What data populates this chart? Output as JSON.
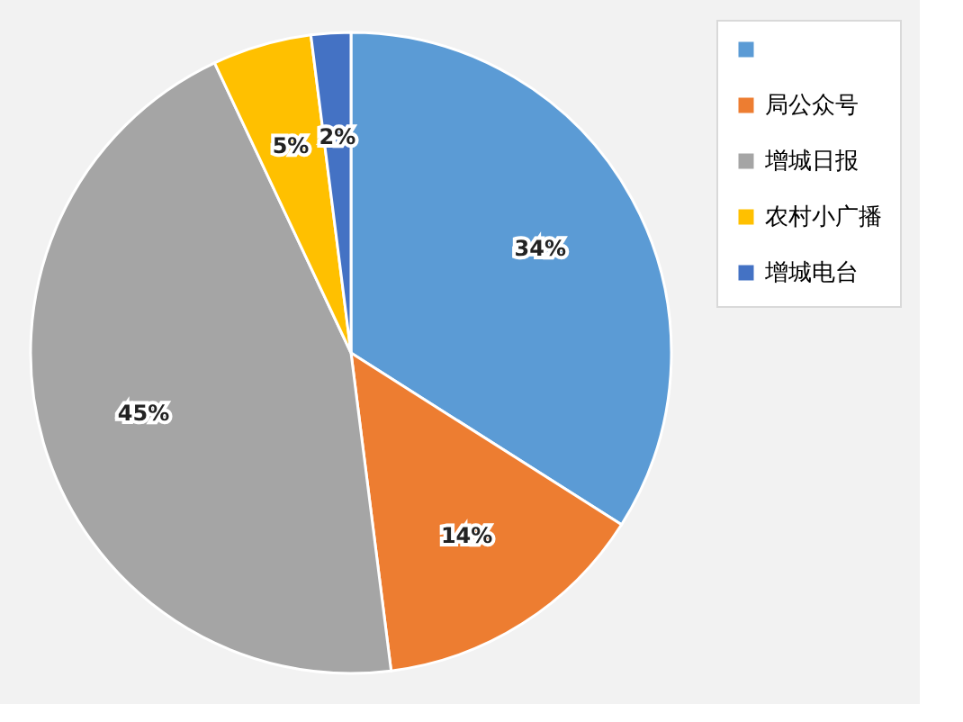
{
  "chart_data": {
    "type": "pie",
    "categories": [
      null,
      "局公众号",
      "增城日报",
      "农村小广播",
      "增城电台"
    ],
    "values": [
      34,
      14,
      45,
      5,
      2
    ],
    "colors": [
      "#5b9bd5",
      "#ed7d31",
      "#a5a5a5",
      "#ffc000",
      "#4472c4"
    ],
    "value_labels": [
      "34%",
      "14%",
      "45%",
      "5%",
      "2%"
    ],
    "legend": "right"
  }
}
